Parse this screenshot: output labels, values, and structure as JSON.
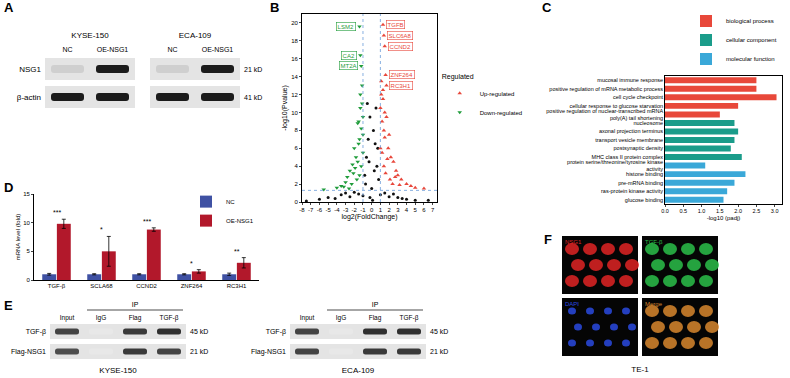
{
  "panel_A": {
    "label": "A",
    "blots": [
      {
        "cell_line": "KYSE-150"
      },
      {
        "cell_line": "ECA-109"
      }
    ],
    "lanes": [
      "NC",
      "OE-NSG1"
    ],
    "rows": [
      {
        "protein": "NSG1",
        "size": "21 kD",
        "intensity": [
          0.12,
          1
        ]
      },
      {
        "protein": "β-actin",
        "size": "41 kD",
        "intensity": [
          1,
          1
        ]
      }
    ]
  },
  "chart_data": [
    {
      "panel": "B",
      "type": "scatter",
      "xlabel": "log2(FoldChange)",
      "ylabel": "-log10(Pvalue)",
      "xlim": [
        -8,
        7.5
      ],
      "xticks": [
        -8,
        -7,
        -6,
        -5,
        -4,
        -3,
        -2,
        -1,
        0,
        1,
        2,
        3,
        4,
        5,
        6,
        7
      ],
      "ylim": [
        0,
        21
      ],
      "yticks": [
        0,
        2,
        4,
        6,
        8,
        10,
        12,
        14,
        16,
        18,
        20
      ],
      "grid": false,
      "legend": "right",
      "legend_title": "Regulated",
      "thresholds": {
        "x": [
          -1,
          1
        ],
        "y": 1.3
      },
      "series": [
        {
          "color": "#111111",
          "marker": "circle",
          "x": [
            -6.0,
            -5.0,
            -4.2,
            -3.5,
            -3.0,
            -2.5,
            -2.0,
            -1.5,
            -1.0,
            -0.8,
            -0.6,
            -0.4,
            -0.2,
            0,
            0.2,
            0.4,
            0.6,
            0.8,
            1.0,
            1.5,
            2.0,
            2.5,
            3.0,
            3.5,
            4.0,
            5.0,
            -0.5,
            -0.3,
            0.3,
            0.5,
            -0.7,
            0.7,
            -0.2,
            0.1,
            -7.5,
            6.5
          ],
          "values": [
            0.3,
            0.5,
            0.4,
            0.8,
            1.0,
            0.6,
            1.1,
            0.9,
            0.7,
            3.0,
            5.0,
            7.0,
            9.5,
            1.5,
            8.0,
            6.5,
            4.0,
            2.5,
            0.8,
            1.0,
            0.6,
            0.9,
            0.5,
            0.4,
            0.3,
            0.2,
            11.0,
            4.5,
            3.5,
            10.5,
            2.0,
            6.0,
            0.5,
            0.2,
            0.1,
            0.2
          ]
        },
        {
          "name": "Up-regulated",
          "color": "#e8473b",
          "marker": "triangle-up",
          "x": [
            1.0,
            1.1,
            1.2,
            1.3,
            1.4,
            1.5,
            1.7,
            1.9,
            2.0,
            2.2,
            2.5,
            2.8,
            3.0,
            3.4,
            4.0,
            4.5,
            5.0,
            1.0,
            1.2,
            1.4,
            1.6,
            1.8,
            2.1,
            2.4,
            2.7,
            3.2,
            1.1,
            1.3,
            1.5,
            6.0,
            1.3,
            1.4,
            1.5,
            1.6,
            1.7
          ],
          "values": [
            10.5,
            12.0,
            9.0,
            11.5,
            8.0,
            7.2,
            9.5,
            6.0,
            7.5,
            5.0,
            4.5,
            3.5,
            3.0,
            2.5,
            2.0,
            1.8,
            1.6,
            6.0,
            5.5,
            4.0,
            3.2,
            4.8,
            2.5,
            2.0,
            2.8,
            1.9,
            13.5,
            12.5,
            10.0,
            1.5,
            19.8,
            18.6,
            17.4,
            14.2,
            13.0
          ]
        },
        {
          "name": "Down-regulated",
          "color": "#1f9c3a",
          "marker": "triangle-down",
          "x": [
            -1.0,
            -1.1,
            -1.2,
            -1.3,
            -1.4,
            -1.5,
            -1.6,
            -1.8,
            -2.0,
            -2.2,
            -2.5,
            -2.8,
            -3.0,
            -3.5,
            -4.0,
            -1.0,
            -1.2,
            -1.4,
            -1.7,
            -1.9,
            -2.3,
            -2.6,
            -1.1,
            -1.3,
            -1.5,
            -1.0,
            -1.6,
            -2.1,
            -3.2,
            -5.5,
            -1.4,
            -1.3,
            -1.2
          ],
          "values": [
            9.5,
            11.0,
            8.2,
            10.5,
            7.0,
            6.5,
            8.8,
            5.0,
            6.0,
            4.2,
            3.5,
            2.8,
            2.2,
            1.8,
            1.6,
            5.5,
            4.0,
            3.0,
            2.5,
            3.8,
            2.0,
            1.5,
            13.0,
            12.0,
            9.0,
            7.5,
            4.5,
            3.2,
            1.7,
            1.4,
            19.6,
            16.4,
            15.2
          ]
        }
      ],
      "annotations": [
        {
          "text": "LSM2",
          "x": -1.4,
          "y": 19.6,
          "color": "#1f9c3a"
        },
        {
          "text": "CA2",
          "x": -1.3,
          "y": 16.4,
          "color": "#1f9c3a"
        },
        {
          "text": "MT2A",
          "x": -1.2,
          "y": 15.2,
          "color": "#1f9c3a"
        },
        {
          "text": "TGFB",
          "x": 1.3,
          "y": 19.8,
          "color": "#e8473b"
        },
        {
          "text": "SLC6A8",
          "x": 1.4,
          "y": 18.6,
          "color": "#e8473b"
        },
        {
          "text": "CCND2",
          "x": 1.5,
          "y": 17.4,
          "color": "#e8473b"
        },
        {
          "text": "ZNF264",
          "x": 1.6,
          "y": 14.2,
          "color": "#e8473b"
        },
        {
          "text": "RC3H1",
          "x": 1.7,
          "y": 13.0,
          "color": "#e8473b"
        }
      ]
    },
    {
      "panel": "C",
      "type": "bar",
      "orientation": "horizontal",
      "xlabel": "-log10 (padj)",
      "xlim": [
        0,
        3.2
      ],
      "xticks": [
        {
          "value": 0,
          "label": "0.0"
        },
        0.5,
        {
          "value": 1,
          "label": "1.0"
        },
        1.5,
        {
          "value": 2,
          "label": "2.0"
        },
        2.5,
        {
          "value": 3,
          "label": "3.0"
        }
      ],
      "grid": false,
      "legend": "upper right",
      "series": [
        {
          "name": "biological process",
          "color": "#e8483a",
          "categories": [
            "mucosal immune response",
            "positive regulation of mRNA metabolic process",
            "cell cycle checkpoint",
            "cellular response to glucose starvation",
            "positive regulation of nuclear-transcribed mRNA poly(A) tail shortening"
          ],
          "values": [
            2.5,
            2.5,
            3.05,
            2.0,
            1.5
          ]
        },
        {
          "name": "cellular component",
          "color": "#1a9c8a",
          "categories": [
            "nucleosome",
            "axonal projection terminus",
            "transport vesicle membrane",
            "postsynaptic density",
            "MHC class II protein complex"
          ],
          "values": [
            1.9,
            2.0,
            1.9,
            1.8,
            2.1
          ]
        },
        {
          "name": "molecular function",
          "color": "#3aa8d8",
          "categories": [
            "protein serine/threonine/tyrosine kinase activity",
            "histone binding",
            "pre-mRNA binding",
            "ras-protein kinase activity",
            "glucose binding"
          ],
          "values": [
            1.1,
            2.2,
            1.9,
            1.7,
            1.6
          ]
        }
      ]
    },
    {
      "panel": "D",
      "type": "bar",
      "ylabel": "mRNA level (fold)",
      "categories": [
        "TGF-β",
        "SCLA68",
        "CCND2",
        "ZNF264",
        "RC3H1"
      ],
      "ylim": [
        0,
        15
      ],
      "yticks": [
        0,
        5,
        10,
        15
      ],
      "grid": false,
      "legend": "upper right",
      "series": [
        {
          "name": "NC",
          "color": "#3f51a3",
          "values": [
            1,
            1,
            1,
            1,
            1
          ],
          "errors": [
            0.15,
            0.1,
            0.1,
            0.1,
            0.2
          ]
        },
        {
          "name": "OE-NSG1",
          "color": "#b2182b",
          "values": [
            9.8,
            5.0,
            8.8,
            1.5,
            3.0
          ],
          "errors": [
            0.8,
            2.6,
            0.3,
            0.3,
            0.9
          ]
        }
      ],
      "significance": [
        "***",
        "*",
        "***",
        "*",
        "**"
      ]
    }
  ],
  "panel_E": {
    "label": "E",
    "ip_label": "IP",
    "lanes": [
      "Input",
      "IgG",
      "Flag",
      "TGF-β"
    ],
    "ip": [
      false,
      true,
      true,
      true
    ],
    "blots": [
      {
        "cell_line": "KYSE-150",
        "rows": [
          {
            "protein": "TGF-β",
            "size": "45 kD",
            "intensity": [
              0.8,
              0,
              0.85,
              0.9
            ]
          },
          {
            "protein": "Flag-NSG1",
            "size": "21 kD",
            "intensity": [
              0.75,
              0,
              0.85,
              0.8
            ]
          }
        ]
      },
      {
        "cell_line": "ECA-109",
        "rows": [
          {
            "protein": "TGF-β",
            "size": "45 kD",
            "intensity": [
              0.8,
              0,
              0.9,
              0.9
            ]
          },
          {
            "protein": "Flag-NSG1",
            "size": "21 kD",
            "intensity": [
              0.8,
              0,
              0.85,
              0.85
            ]
          }
        ]
      }
    ]
  },
  "panel_F": {
    "label": "F",
    "cell_line": "TE-1",
    "images": [
      {
        "label": "NSG1",
        "color": "#e02424"
      },
      {
        "label": "TGF-β",
        "color": "#2cc04a"
      },
      {
        "label": "DAPI",
        "color": "#2a4ae0"
      },
      {
        "label": "Merge",
        "color": "#d8872e"
      }
    ]
  }
}
